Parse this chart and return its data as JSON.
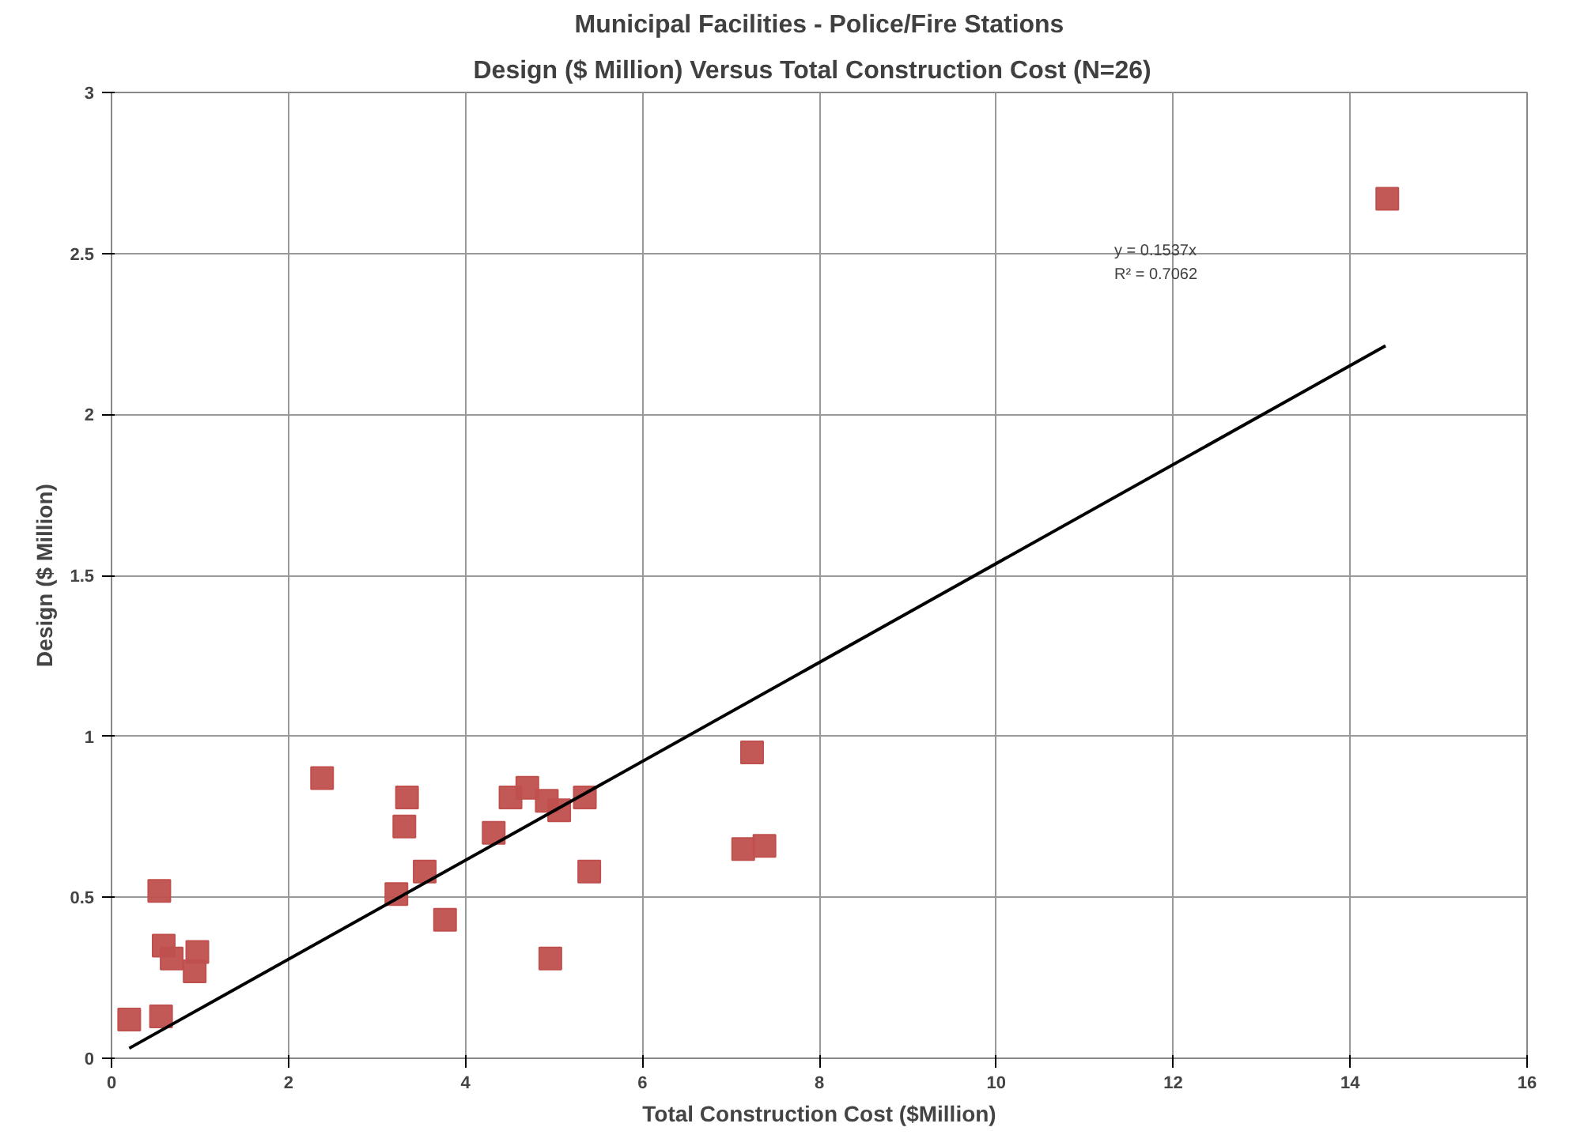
{
  "chart_data": {
    "type": "scatter",
    "title": "Municipal Facilities - Police/Fire Stations",
    "subtitle": "Design  ($ Million) Versus Total Construction Cost  (N=26)",
    "xlabel": "Total Construction Cost ($Million)",
    "ylabel": "Design ($ Million)",
    "x": [
      0.2,
      0.56,
      0.54,
      0.59,
      0.68,
      0.97,
      0.94,
      2.38,
      3.34,
      3.31,
      3.22,
      3.54,
      3.77,
      4.32,
      4.51,
      4.7,
      4.92,
      5.06,
      5.35,
      5.4,
      4.96,
      7.24,
      7.14,
      7.38,
      14.42
    ],
    "series": [
      {
        "color": "#c0504d",
        "marker": "square",
        "values": [
          0.12,
          0.13,
          0.52,
          0.35,
          0.31,
          0.33,
          0.27,
          0.87,
          0.81,
          0.72,
          0.51,
          0.58,
          0.43,
          0.7,
          0.81,
          0.84,
          0.8,
          0.77,
          0.81,
          0.58,
          0.31,
          0.95,
          0.65,
          0.66,
          2.67
        ]
      },
      {
        "type": "line",
        "color": "#000000",
        "x": [
          0.2,
          14.4
        ],
        "values": [
          0.031,
          2.213
        ],
        "marker": "none"
      }
    ],
    "annotations": [
      "y = 0.1537x",
      "R² = 0.7062"
    ],
    "xlim": [
      0,
      16
    ],
    "ylim": [
      0,
      3
    ],
    "xticks": [
      0,
      2,
      4,
      6,
      8,
      10,
      12,
      14,
      16
    ],
    "yticks": [
      0,
      0.5,
      1,
      1.5,
      2,
      2.5,
      3
    ],
    "grid": true
  }
}
